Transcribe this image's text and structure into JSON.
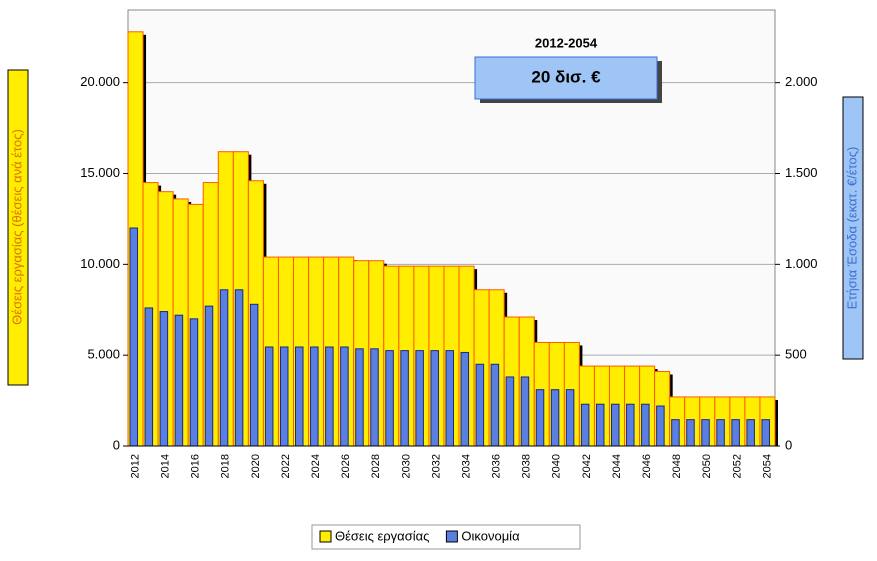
{
  "chart_data": {
    "type": "bar",
    "annotation_title": "2012-2054",
    "annotation_value": "20 δισ. €",
    "ylabel": "Θέσεις εργασίας (θέσεις ανά έτος)",
    "y2label": "Ετήσια Έσοδα (εκατ. €/έτος)",
    "categories": [
      "2012",
      null,
      "2014",
      null,
      "2016",
      null,
      "2018",
      null,
      "2020",
      null,
      "2022",
      null,
      "2024",
      null,
      "2026",
      null,
      "2028",
      null,
      "2030",
      null,
      "2032",
      null,
      "2034",
      null,
      "2036",
      null,
      "2038",
      null,
      "2040",
      null,
      "2042",
      null,
      "2044",
      null,
      "2046",
      null,
      "2048",
      null,
      "2050",
      null,
      "2052",
      null,
      "2054"
    ],
    "series": [
      {
        "name": "Θέσεις εργασίας",
        "color": "#ffee00",
        "values": [
          22800,
          14500,
          14000,
          13600,
          13300,
          14500,
          16200,
          16200,
          14600,
          10400,
          10400,
          10400,
          10400,
          10400,
          10400,
          10200,
          10200,
          9900,
          9900,
          9900,
          9900,
          9900,
          9900,
          8600,
          8600,
          7100,
          7100,
          5700,
          5700,
          5700,
          4400,
          4400,
          4400,
          4400,
          4400,
          4100,
          2700,
          2700,
          2700,
          2700,
          2700,
          2700,
          2700
        ]
      },
      {
        "name": "Οικονομία",
        "color": "#5b7fe0",
        "axis": "y2",
        "values": [
          1200,
          760,
          740,
          720,
          700,
          770,
          860,
          860,
          780,
          545,
          545,
          545,
          545,
          545,
          545,
          535,
          535,
          525,
          525,
          525,
          525,
          525,
          515,
          450,
          450,
          380,
          380,
          310,
          310,
          310,
          230,
          230,
          230,
          230,
          230,
          220,
          145,
          145,
          145,
          145,
          145,
          145,
          145
        ]
      }
    ],
    "ylim": [
      0,
      24000
    ],
    "yticks": [
      0,
      {
        "value": 5000,
        "label": "5.000"
      },
      {
        "value": 10000,
        "label": "10.000"
      },
      {
        "value": 15000,
        "label": "15.000"
      },
      {
        "value": 20000,
        "label": "20.000"
      }
    ],
    "y2lim": [
      0,
      2400
    ],
    "y2ticks": [
      0,
      500,
      {
        "value": 1000,
        "label": "1.000"
      },
      {
        "value": 1500,
        "label": "1.500"
      },
      {
        "value": 2000,
        "label": "2.000"
      }
    ],
    "grid": true,
    "legend": "bottom"
  }
}
